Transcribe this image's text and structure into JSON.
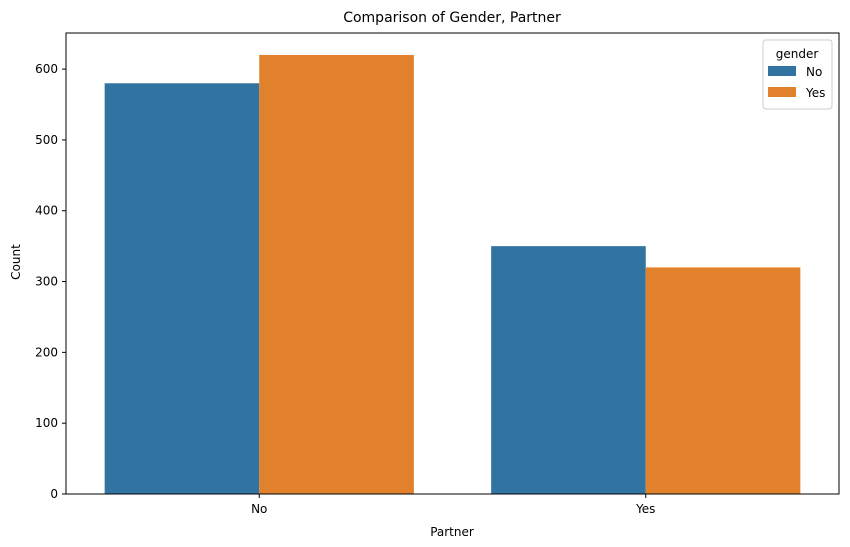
{
  "chart_data": {
    "type": "bar",
    "title": "Comparison of Gender, Partner",
    "xlabel": "Partner",
    "ylabel": "Count",
    "categories": [
      "No",
      "Yes"
    ],
    "series": [
      {
        "name": "No",
        "values": [
          580,
          350
        ],
        "color": "#3274a1"
      },
      {
        "name": "Yes",
        "values": [
          620,
          320
        ],
        "color": "#e1812c"
      }
    ],
    "ylim": [
      0,
      651
    ],
    "yticks": [
      0,
      100,
      200,
      300,
      400,
      500,
      600
    ],
    "grid": false,
    "legend": {
      "title": "gender",
      "position": "top-right"
    }
  }
}
